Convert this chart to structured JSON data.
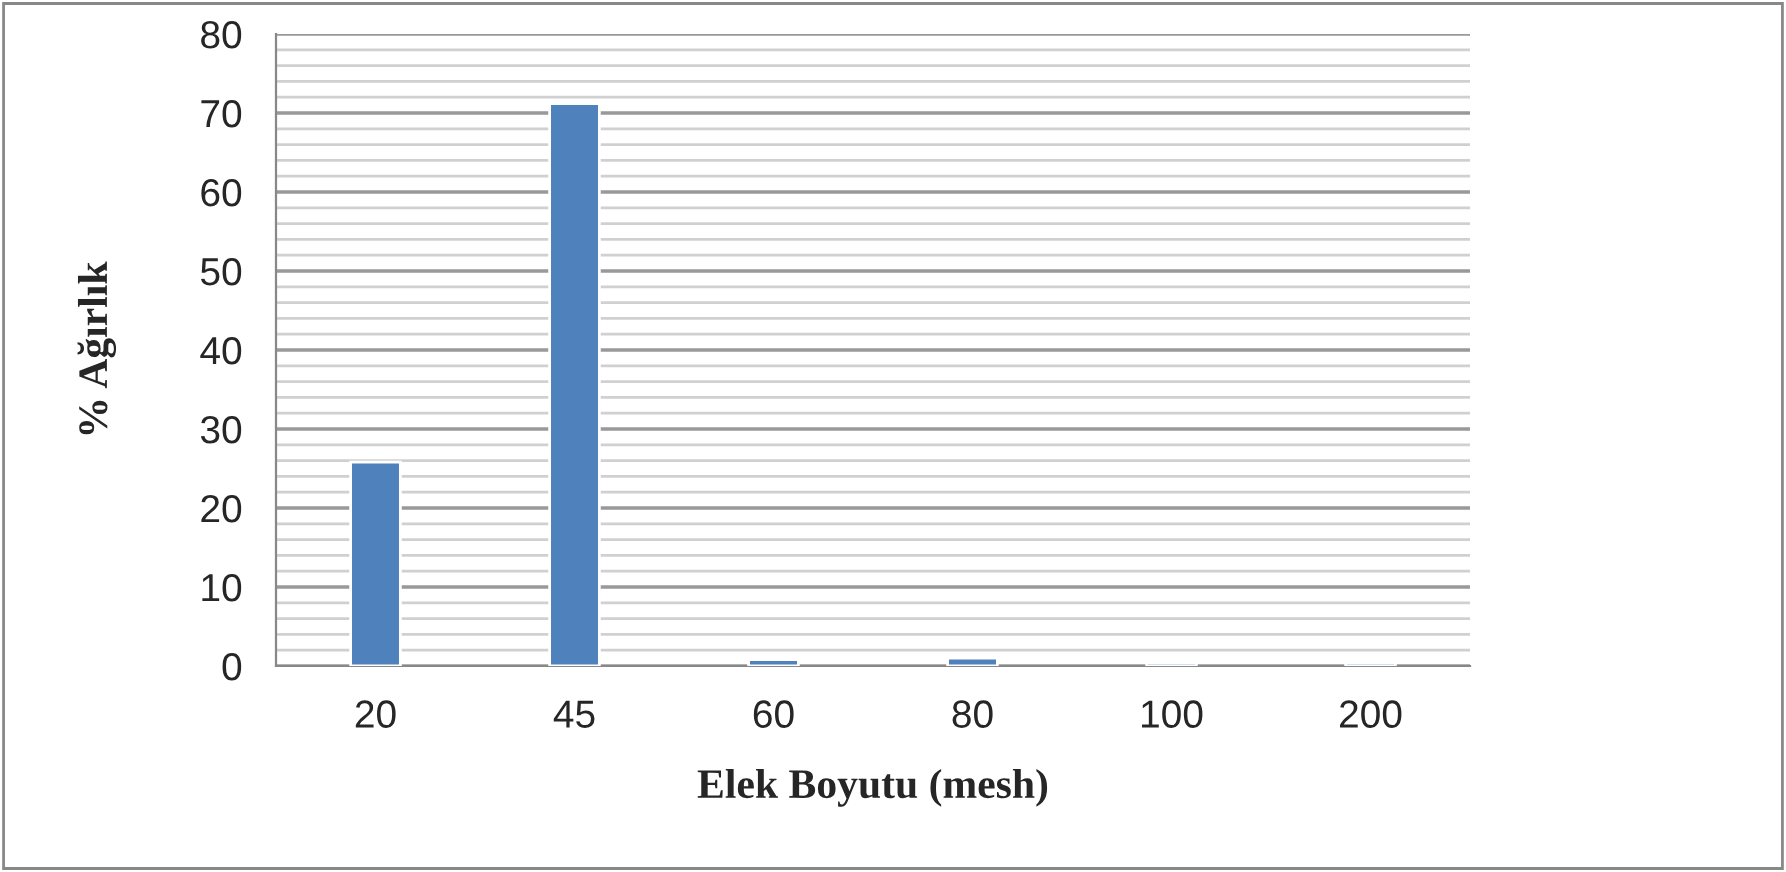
{
  "chart_data": {
    "type": "bar",
    "xlabel": "Elek Boyutu (mesh)",
    "ylabel": "% Ağırlık",
    "categories": [
      "20",
      "45",
      "60",
      "80",
      "100",
      "200"
    ],
    "values": [
      25.8,
      71.2,
      0.8,
      1.0,
      0.4,
      0.4
    ],
    "color": "#4f81bd",
    "ylim": [
      0,
      80
    ],
    "yticks": [
      0,
      {
        "value": 2,
        "label": null
      },
      {
        "value": 4,
        "label": null
      },
      {
        "value": 6,
        "label": null
      },
      {
        "value": 8,
        "label": null
      },
      10,
      {
        "value": 12,
        "label": null
      },
      {
        "value": 14,
        "label": null
      },
      {
        "value": 16,
        "label": null
      },
      {
        "value": 18,
        "label": null
      },
      20,
      {
        "value": 22,
        "label": null
      },
      {
        "value": 24,
        "label": null
      },
      {
        "value": 26,
        "label": null
      },
      {
        "value": 28,
        "label": null
      },
      30,
      {
        "value": 32,
        "label": null
      },
      {
        "value": 34,
        "label": null
      },
      {
        "value": 36,
        "label": null
      },
      {
        "value": 38,
        "label": null
      },
      40,
      {
        "value": 42,
        "label": null
      },
      {
        "value": 44,
        "label": null
      },
      {
        "value": 46,
        "label": null
      },
      {
        "value": 48,
        "label": null
      },
      50,
      {
        "value": 52,
        "label": null
      },
      {
        "value": 54,
        "label": null
      },
      {
        "value": 56,
        "label": null
      },
      {
        "value": 58,
        "label": null
      },
      60,
      {
        "value": 62,
        "label": null
      },
      {
        "value": 64,
        "label": null
      },
      {
        "value": 66,
        "label": null
      },
      {
        "value": 68,
        "label": null
      },
      70,
      {
        "value": 72,
        "label": null
      },
      {
        "value": 74,
        "label": null
      },
      {
        "value": 76,
        "label": null
      },
      {
        "value": 78,
        "label": null
      },
      80
    ],
    "grid": "y"
  }
}
